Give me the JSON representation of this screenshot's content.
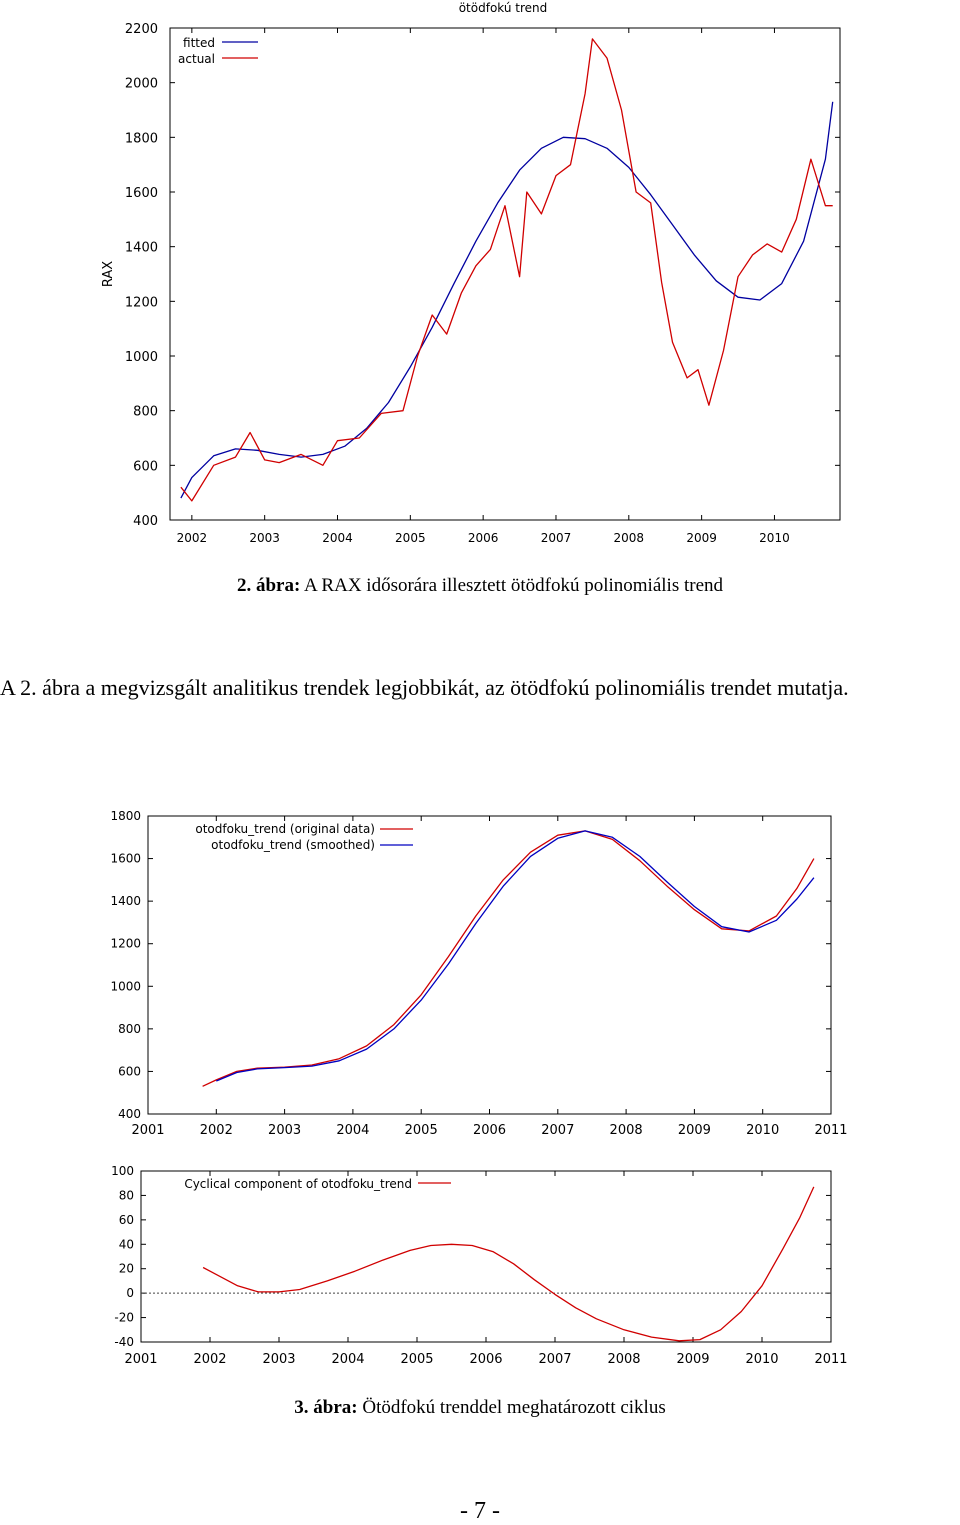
{
  "chart_data": [
    {
      "type": "line",
      "title": "ötödfokú trend",
      "ylabel": "RAX",
      "xlabel": "",
      "xlim": [
        2001.7,
        2010.9
      ],
      "ylim": [
        400,
        2200
      ],
      "x_ticks": [
        "2002",
        "2003",
        "2004",
        "2005",
        "2006",
        "2007",
        "2008",
        "2009",
        "2010"
      ],
      "y_ticks": [
        "400",
        "600",
        "800",
        "1000",
        "1200",
        "1400",
        "1600",
        "1800",
        "2000",
        "2200"
      ],
      "legend_position": "top-left",
      "series": [
        {
          "name": "fitted",
          "color": "#0000a0",
          "x": [
            2001.85,
            2002.0,
            2002.3,
            2002.6,
            2002.9,
            2003.2,
            2003.5,
            2003.8,
            2004.1,
            2004.4,
            2004.7,
            2005.0,
            2005.3,
            2005.6,
            2005.9,
            2006.2,
            2006.5,
            2006.8,
            2007.1,
            2007.4,
            2007.7,
            2008.0,
            2008.3,
            2008.6,
            2008.9,
            2009.2,
            2009.5,
            2009.8,
            2010.1,
            2010.4,
            2010.7,
            2010.8
          ],
          "values": [
            480,
            555,
            635,
            660,
            655,
            640,
            630,
            640,
            670,
            735,
            830,
            960,
            1105,
            1265,
            1420,
            1560,
            1680,
            1760,
            1800,
            1795,
            1760,
            1690,
            1590,
            1480,
            1370,
            1275,
            1215,
            1205,
            1265,
            1420,
            1720,
            1930
          ]
        },
        {
          "name": "actual",
          "color": "#d00000",
          "x": [
            2001.85,
            2002.0,
            2002.3,
            2002.6,
            2002.8,
            2003.0,
            2003.2,
            2003.5,
            2003.8,
            2004.0,
            2004.3,
            2004.6,
            2004.9,
            2005.1,
            2005.3,
            2005.5,
            2005.7,
            2005.9,
            2006.1,
            2006.3,
            2006.5,
            2006.6,
            2006.8,
            2007.0,
            2007.2,
            2007.4,
            2007.5,
            2007.7,
            2007.9,
            2008.1,
            2008.3,
            2008.45,
            2008.6,
            2008.8,
            2008.95,
            2009.1,
            2009.3,
            2009.5,
            2009.7,
            2009.9,
            2010.1,
            2010.3,
            2010.5,
            2010.7,
            2010.8
          ],
          "values": [
            520,
            470,
            600,
            630,
            720,
            620,
            610,
            640,
            600,
            690,
            700,
            790,
            800,
            1000,
            1150,
            1080,
            1230,
            1330,
            1390,
            1550,
            1290,
            1600,
            1520,
            1660,
            1700,
            1960,
            2160,
            2090,
            1900,
            1600,
            1560,
            1270,
            1050,
            920,
            950,
            820,
            1020,
            1290,
            1370,
            1410,
            1380,
            1500,
            1720,
            1550,
            1550
          ]
        }
      ]
    },
    {
      "type": "line",
      "title": "",
      "xlabel": "",
      "ylabel": "",
      "xlim": [
        2001,
        2011
      ],
      "ylim": [
        400,
        1800
      ],
      "x_ticks": [
        "2001",
        "2002",
        "2003",
        "2004",
        "2005",
        "2006",
        "2007",
        "2008",
        "2009",
        "2010",
        "2011"
      ],
      "y_ticks": [
        "400",
        "600",
        "800",
        "1000",
        "1200",
        "1400",
        "1600",
        "1800"
      ],
      "legend_position": "top-left",
      "series": [
        {
          "name": "otodfoku_trend (original data)",
          "color": "#d00000",
          "x": [
            2001.8,
            2002.0,
            2002.3,
            2002.6,
            2003.0,
            2003.4,
            2003.8,
            2004.2,
            2004.6,
            2005.0,
            2005.4,
            2005.8,
            2006.2,
            2006.6,
            2007.0,
            2007.4,
            2007.8,
            2008.2,
            2008.6,
            2009.0,
            2009.4,
            2009.8,
            2010.2,
            2010.5,
            2010.75
          ],
          "values": [
            530,
            560,
            600,
            615,
            620,
            630,
            660,
            720,
            820,
            960,
            1140,
            1330,
            1500,
            1630,
            1710,
            1730,
            1690,
            1590,
            1470,
            1360,
            1270,
            1260,
            1330,
            1460,
            1600
          ]
        },
        {
          "name": "otodfoku_trend (smoothed)",
          "color": "#0000c0",
          "x": [
            2002.0,
            2002.3,
            2002.6,
            2003.0,
            2003.4,
            2003.8,
            2004.2,
            2004.6,
            2005.0,
            2005.4,
            2005.8,
            2006.2,
            2006.6,
            2007.0,
            2007.4,
            2007.8,
            2008.2,
            2008.6,
            2009.0,
            2009.4,
            2009.8,
            2010.2,
            2010.5,
            2010.75
          ],
          "values": [
            555,
            595,
            612,
            618,
            625,
            650,
            705,
            800,
            935,
            1105,
            1295,
            1470,
            1610,
            1695,
            1730,
            1700,
            1610,
            1490,
            1375,
            1280,
            1255,
            1310,
            1410,
            1510
          ]
        }
      ]
    },
    {
      "type": "line",
      "title": "",
      "xlabel": "",
      "ylabel": "",
      "xlim": [
        2001,
        2011
      ],
      "ylim": [
        -40,
        100
      ],
      "x_ticks": [
        "2001",
        "2002",
        "2003",
        "2004",
        "2005",
        "2006",
        "2007",
        "2008",
        "2009",
        "2010",
        "2011"
      ],
      "y_ticks": [
        "-40",
        "-20",
        "0",
        "20",
        "40",
        "60",
        "80",
        "100"
      ],
      "zero_line": "dotted",
      "legend_position": "top-left",
      "series": [
        {
          "name": "Cyclical component of otodfoku_trend",
          "color": "#d00000",
          "x": [
            2001.9,
            2002.1,
            2002.4,
            2002.7,
            2003.0,
            2003.3,
            2003.7,
            2004.1,
            2004.5,
            2004.9,
            2005.2,
            2005.5,
            2005.8,
            2006.1,
            2006.4,
            2006.7,
            2007.0,
            2007.3,
            2007.6,
            2008.0,
            2008.4,
            2008.8,
            2009.1,
            2009.4,
            2009.7,
            2010.0,
            2010.3,
            2010.55,
            2010.75
          ],
          "values": [
            21,
            15,
            6,
            1,
            1,
            3,
            10,
            18,
            27,
            35,
            39,
            40,
            39,
            34,
            24,
            11,
            -1,
            -12,
            -21,
            -30,
            -36,
            -39,
            -38,
            -30,
            -15,
            6,
            36,
            62,
            87
          ]
        }
      ]
    }
  ],
  "captions": {
    "fig2_label": "2. ábra:",
    "fig2_text": " A RAX idősorára illesztett ötödfokú polinomiális trend",
    "fig3_label": "3. ábra:",
    "fig3_text": " Ötödfokú trenddel meghatározott ciklus"
  },
  "paragraph": "A 2. ábra a megvizsgált analitikus trendek legjobbikát, az ötödfokú polinomiális trendet mutatja.",
  "page_number": "- 7 -"
}
